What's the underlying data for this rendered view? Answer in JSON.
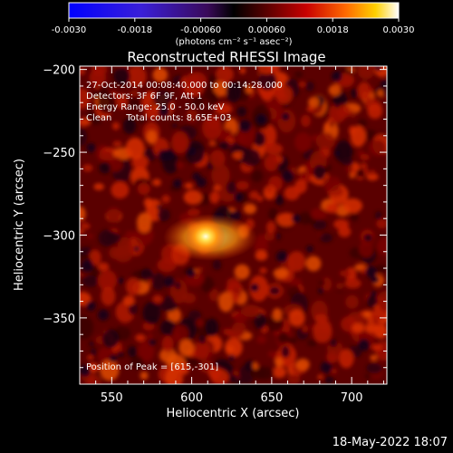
{
  "colorbar": {
    "ticks": [
      "-0.0030",
      "-0.0018",
      "-0.00060",
      "0.00060",
      "0.0018",
      "0.0030"
    ],
    "unit_label": "(photons cm⁻² s⁻¹ asec⁻²)",
    "range": [
      -0.003,
      0.003
    ]
  },
  "title": "Reconstructed RHESSI Image",
  "info": {
    "time": "27-Oct-2014 00:08:40.000 to 00:14:28.000",
    "detectors": "Detectors: 3F 6F 9F, Att 1",
    "energy": "Energy Range: 25.0 - 50.0 keV",
    "clean": "Clean     Total counts: 8.65E+03",
    "peak": "Position of Peak = [615,-301]"
  },
  "footer": {
    "date": "18-May-2022 18:07"
  },
  "chart_data": {
    "type": "heatmap",
    "title": "Reconstructed RHESSI Image",
    "xlabel": "Heliocentric X (arcsec)",
    "ylabel": "Heliocentric Y (arcsec)",
    "xlim": [
      530,
      722
    ],
    "ylim": [
      -390,
      -198
    ],
    "x_ticks": [
      550,
      600,
      650,
      700
    ],
    "y_ticks": [
      -200,
      -250,
      -300,
      -350
    ],
    "x_tick_labels": [
      "550",
      "600",
      "650",
      "700"
    ],
    "y_tick_labels": [
      "−200",
      "−250",
      "−300",
      "−350"
    ],
    "peak": {
      "x": 615,
      "y": -301
    },
    "colormap": "hot (black-red-orange-yellow-white); negative values blue-purple"
  }
}
